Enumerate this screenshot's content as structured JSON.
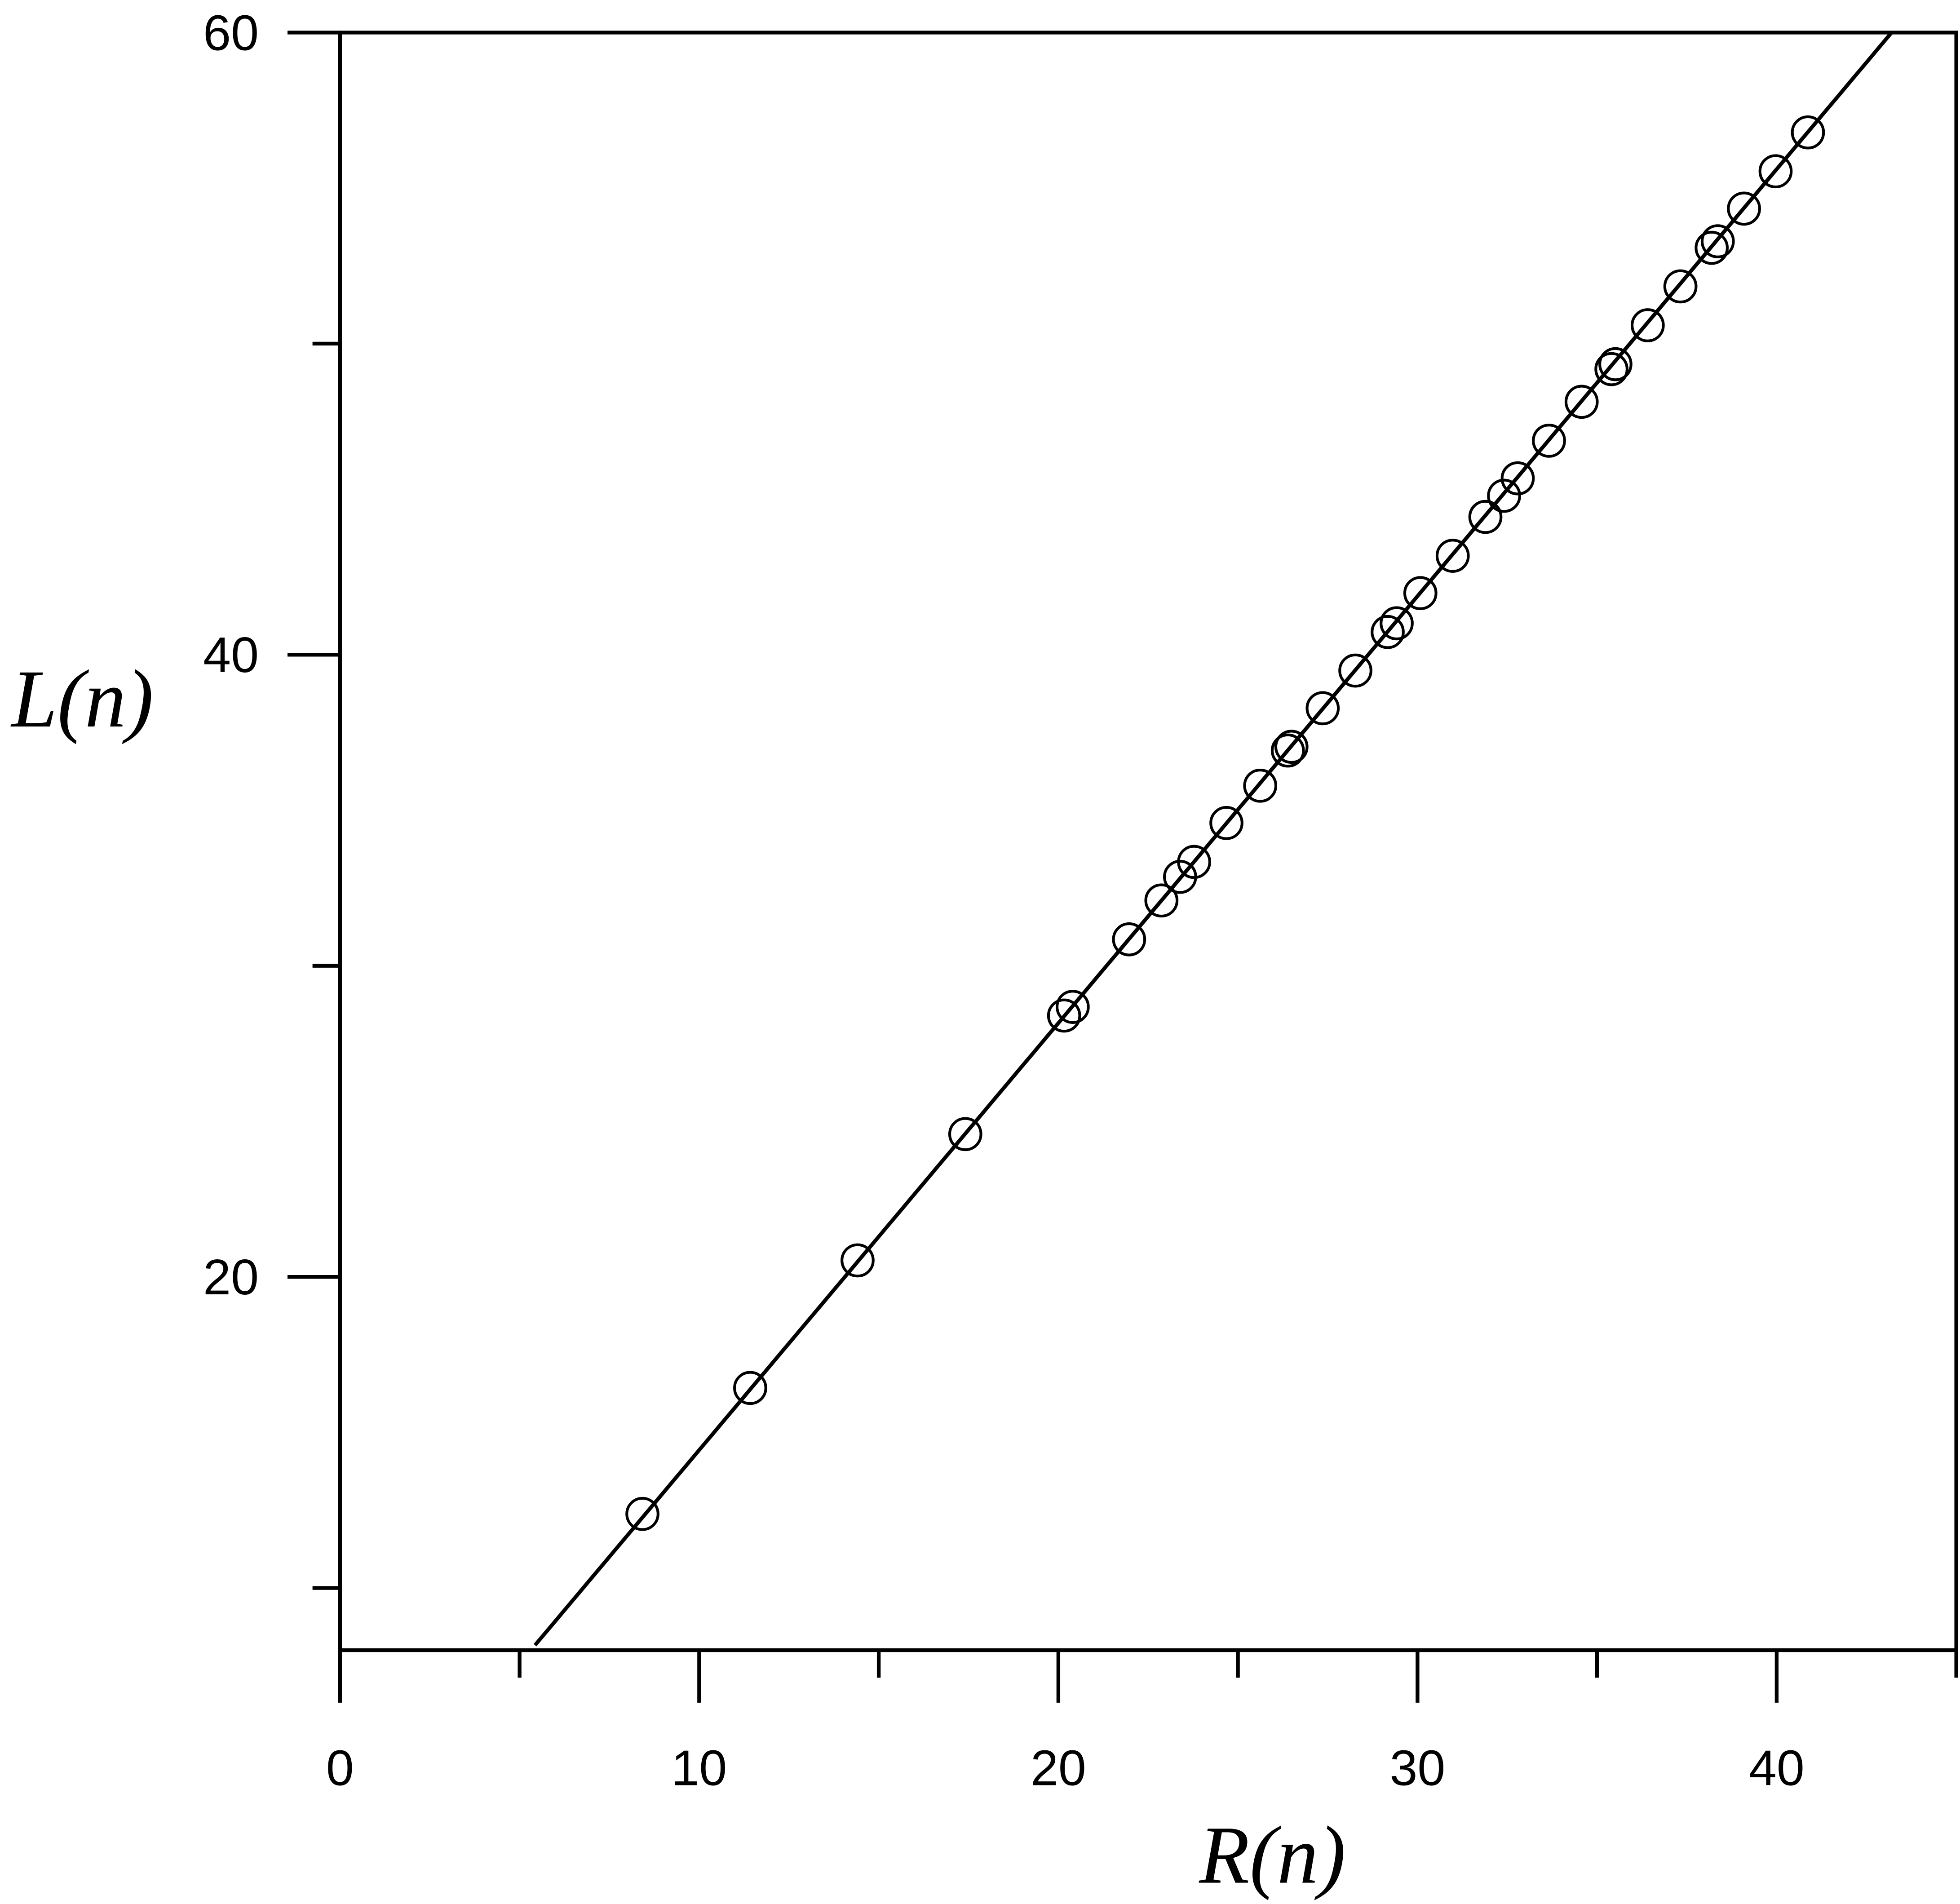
{
  "chart_data": {
    "type": "scatter",
    "x_label": "R(n)",
    "y_label": "L(n)",
    "xlim": [
      0,
      45
    ],
    "ylim": [
      8,
      60
    ],
    "xticks": [
      0,
      10,
      20,
      30,
      40
    ],
    "yticks": [
      20,
      40,
      60
    ],
    "xminorticks": [
      5,
      15,
      25,
      35,
      45
    ],
    "yminorticks": [
      10,
      30,
      50
    ],
    "color": "#000000",
    "points": {
      "x": [
        8.42,
        11.42,
        14.41,
        17.41,
        20.16,
        20.4,
        21.97,
        22.87,
        23.39,
        23.78,
        24.68,
        25.62,
        26.39,
        26.49,
        27.36,
        28.27,
        29.17,
        29.42,
        30.08,
        30.98,
        31.89,
        32.41,
        32.79,
        33.66,
        34.57,
        35.4,
        35.51,
        36.41,
        37.32,
        38.19,
        38.36,
        39.09,
        39.97,
        40.87
      ],
      "y": [
        12.38,
        16.43,
        20.53,
        24.59,
        28.4,
        28.68,
        30.85,
        32.1,
        32.86,
        33.34,
        34.59,
        35.79,
        36.92,
        37.04,
        38.28,
        39.49,
        40.73,
        41.01,
        41.98,
        43.18,
        44.43,
        45.11,
        45.67,
        46.88,
        48.13,
        49.18,
        49.34,
        50.59,
        51.84,
        53.08,
        53.29,
        54.34,
        55.54,
        56.79
      ]
    },
    "fit_line": {
      "x": [
        5.43,
        43.2
      ],
      "y": [
        8.16,
        60
      ]
    }
  }
}
